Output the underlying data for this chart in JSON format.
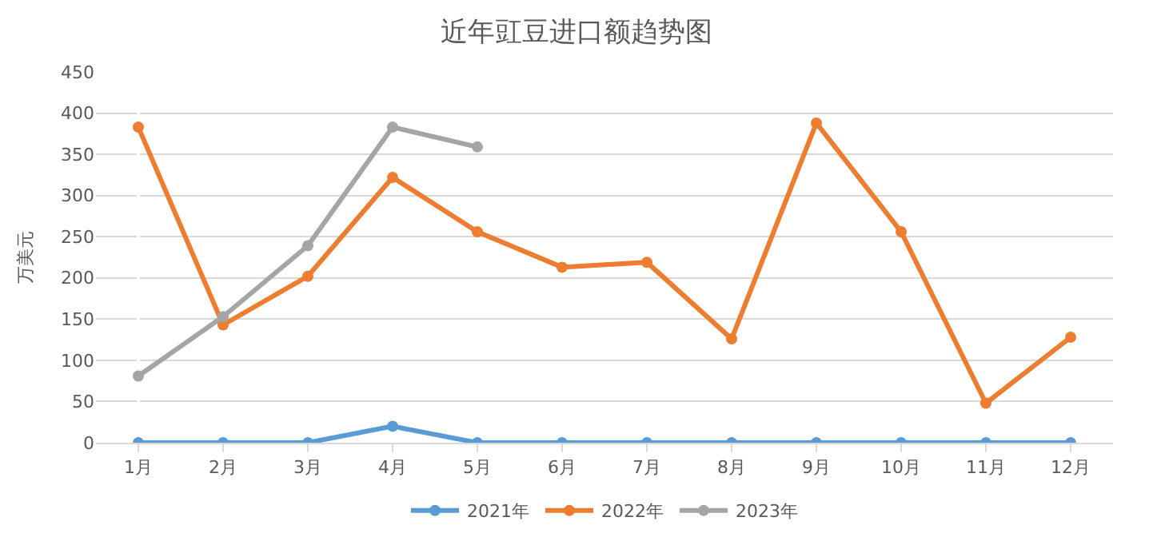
{
  "chart_data": {
    "type": "line",
    "title": "近年豇豆进口额趋势图",
    "ylabel": "万美元",
    "categories": [
      "1月",
      "2月",
      "3月",
      "4月",
      "5月",
      "6月",
      "7月",
      "8月",
      "9月",
      "10月",
      "11月",
      "12月"
    ],
    "series": [
      {
        "name": "2021年",
        "color": "#5b9bd5",
        "values": [
          0,
          0,
          0,
          20,
          0,
          0,
          0,
          0,
          0,
          0,
          0,
          0
        ]
      },
      {
        "name": "2022年",
        "color": "#ed7d31",
        "values": [
          383,
          143,
          202,
          322,
          256,
          213,
          219,
          126,
          388,
          256,
          48,
          128
        ]
      },
      {
        "name": "2023年",
        "color": "#a5a5a5",
        "values": [
          81,
          153,
          239,
          383,
          359,
          null,
          null,
          null,
          null,
          null,
          null,
          null
        ]
      }
    ],
    "ylim": [
      0,
      450
    ],
    "yticks": [
      0,
      50,
      100,
      150,
      200,
      250,
      300,
      350,
      400,
      450
    ],
    "grid": "y",
    "legend": "bottom",
    "marker": "circle",
    "line_style": "solid"
  }
}
